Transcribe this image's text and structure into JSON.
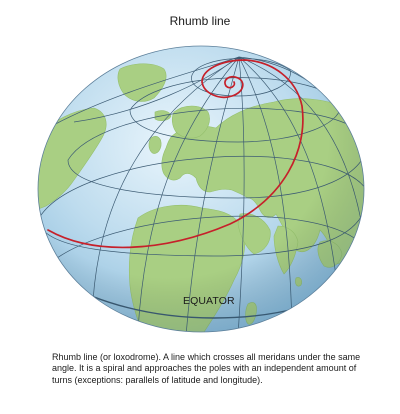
{
  "title": "Rhumb line",
  "equator_label": "EQUATOR",
  "caption": "Rhumb line (or loxodrome). A line which crosses all meridans under the same angle. It is a spiral and approaches the poles with an independent amount of turns (exceptions: parallels of latitude and longitude).",
  "colors": {
    "ocean": "#bcdcef",
    "land": "#a9cf83",
    "grid": "#3d5c74",
    "rhumb_line": "#c6202a"
  }
}
